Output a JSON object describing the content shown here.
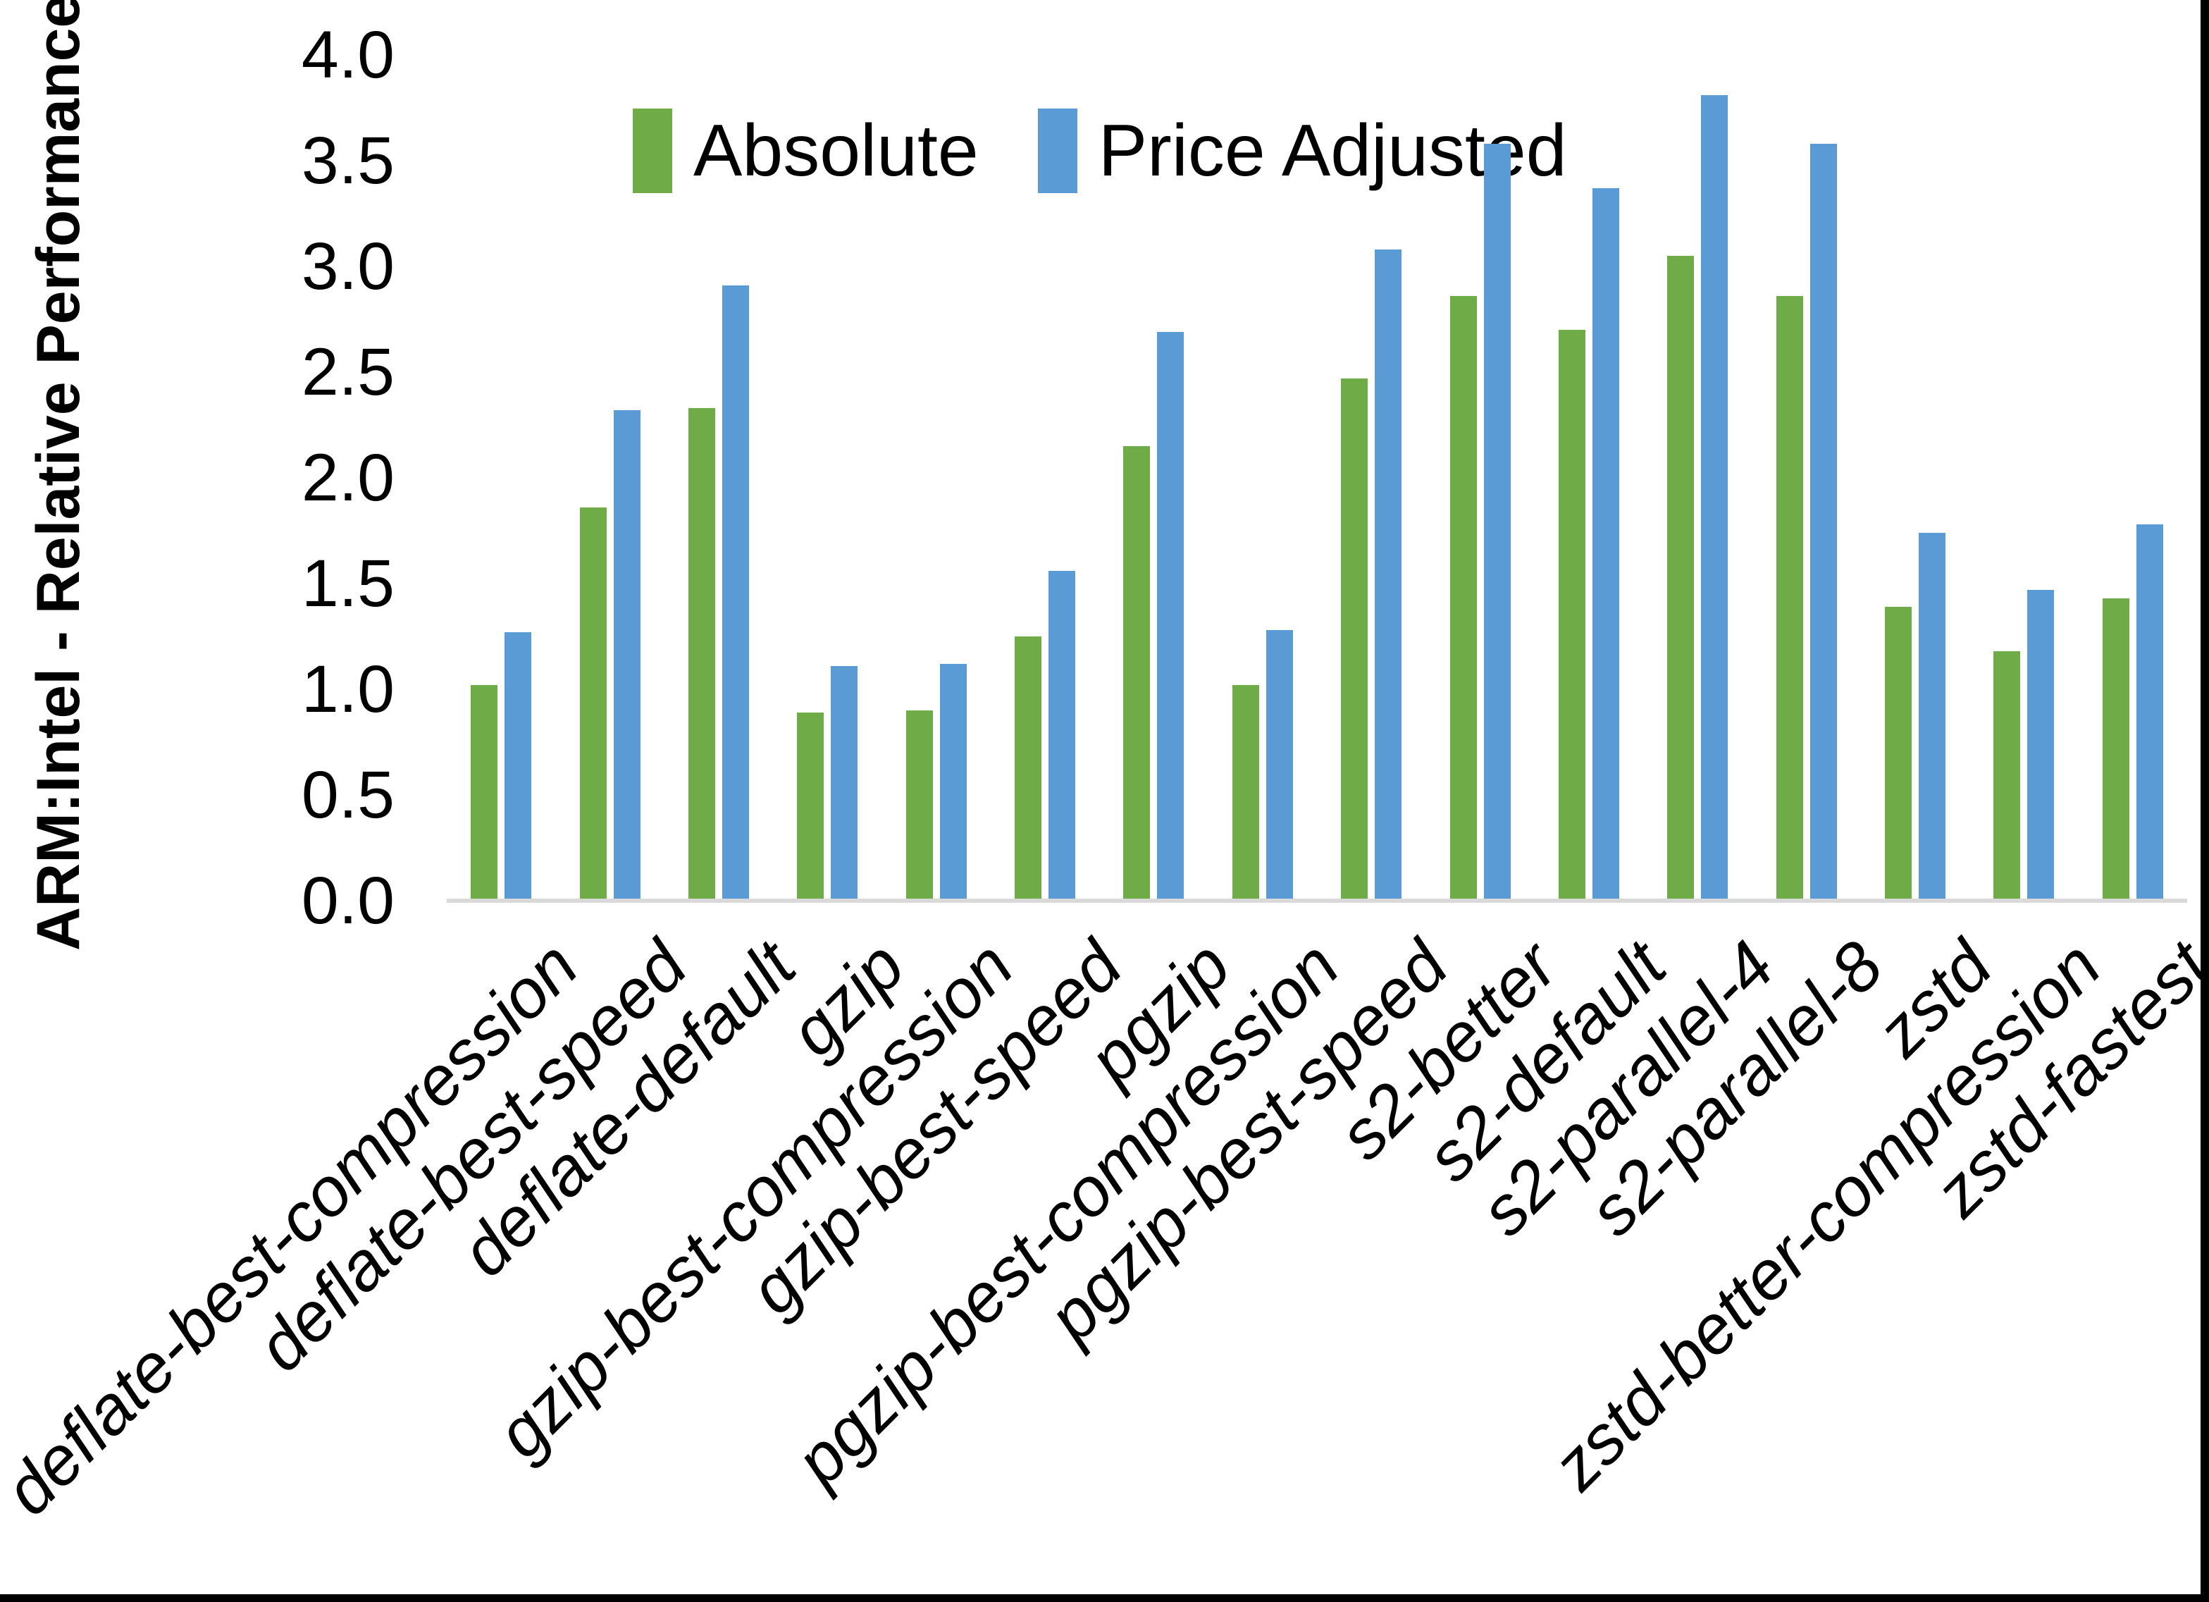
{
  "chart_data": {
    "type": "bar",
    "title": "",
    "xlabel": "",
    "ylabel": "ARM:Intel - Relative Performance",
    "ylim": [
      0.0,
      4.0
    ],
    "ytick_step": 0.5,
    "ytick_labels": [
      "0.0",
      "0.5",
      "1.0",
      "1.5",
      "2.0",
      "2.5",
      "3.0",
      "3.5",
      "4.0"
    ],
    "grid": false,
    "legend_position": "top-center",
    "categories": [
      "deflate-best-compression",
      "deflate-best-speed",
      "deflate-default",
      "gzip",
      "gzip-best-compression",
      "gzip-best-speed",
      "pgzip",
      "pgzip-best-compression",
      "pgzip-best-speed",
      "s2-better",
      "s2-default",
      "s2-parallel-4",
      "s2-parallel-8",
      "zstd",
      "zstd-better-compression",
      "zstd-fastest"
    ],
    "series": [
      {
        "name": "Absolute",
        "color": "#6FAC47",
        "values": [
          1.02,
          1.86,
          2.33,
          0.89,
          0.9,
          1.25,
          2.15,
          1.02,
          2.47,
          2.86,
          2.7,
          3.05,
          2.86,
          1.39,
          1.18,
          1.43
        ]
      },
      {
        "name": "Price Adjusted",
        "color": "#5B9BD5",
        "values": [
          1.27,
          2.32,
          2.91,
          1.11,
          1.12,
          1.56,
          2.69,
          1.28,
          3.08,
          3.58,
          3.37,
          3.81,
          3.58,
          1.74,
          1.47,
          1.78
        ]
      }
    ]
  },
  "colors": {
    "axis_line": "#D9D9D9",
    "text": "#000000",
    "background": "#FFFFFF",
    "border": "#000000"
  }
}
